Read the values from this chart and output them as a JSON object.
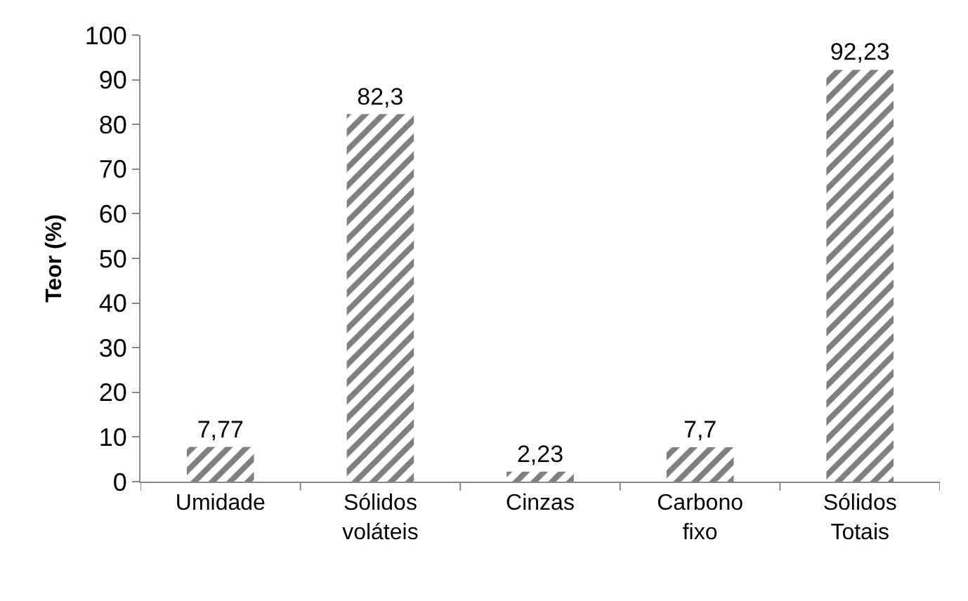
{
  "chart_data": {
    "type": "bar",
    "ylabel": "Teor (%)",
    "categories": [
      "Umidade",
      "Sólidos voláteis",
      "Cinzas",
      "Carbono fixo",
      "Sólidos Totais"
    ],
    "values": [
      7.77,
      82.3,
      2.23,
      7.7,
      92.23
    ],
    "value_labels": [
      "7,77",
      "82,3",
      "2,23",
      "7,7",
      "92,23"
    ],
    "color": "#7f7f7f",
    "ylim": [
      0,
      100
    ],
    "yticks": [
      0,
      10,
      20,
      30,
      40,
      50,
      60,
      70,
      80,
      90,
      100
    ]
  }
}
